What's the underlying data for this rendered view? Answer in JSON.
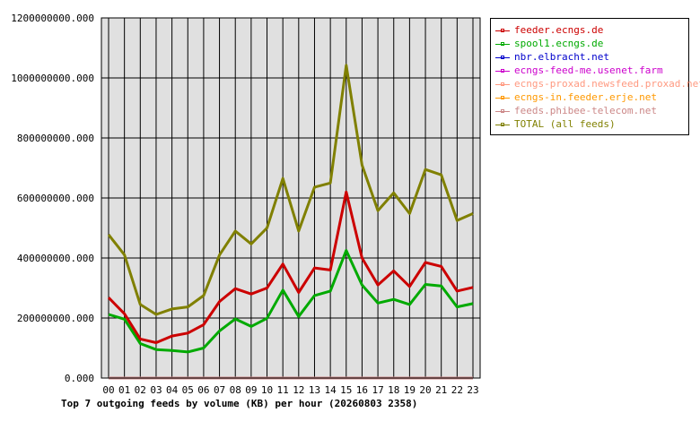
{
  "chart_data": {
    "type": "line",
    "title": "Top 7 outgoing feeds by volume (KB) per hour (20260803 2358)",
    "categories": [
      "00",
      "01",
      "02",
      "03",
      "04",
      "05",
      "06",
      "07",
      "08",
      "09",
      "10",
      "11",
      "12",
      "13",
      "14",
      "15",
      "16",
      "17",
      "18",
      "19",
      "20",
      "21",
      "22",
      "23"
    ],
    "y_ticks": [
      "0.000",
      "200000000.000",
      "400000000.000",
      "600000000.000",
      "800000000.000",
      "1000000000.000",
      "1200000000.000"
    ],
    "ylim": [
      0,
      1200000000
    ],
    "grid": true,
    "legend_position": "right",
    "series": [
      {
        "name": "feeder.ecngs.de",
        "color": "#cc0000",
        "values": [
          268000000,
          214000000,
          130000000,
          118000000,
          140000000,
          150000000,
          178000000,
          255000000,
          298000000,
          280000000,
          300000000,
          380000000,
          285000000,
          367000000,
          360000000,
          620000000,
          400000000,
          310000000,
          357000000,
          305000000,
          385000000,
          372000000,
          290000000,
          302000000
        ]
      },
      {
        "name": "spool1.ecngs.de",
        "color": "#00aa00",
        "values": [
          212000000,
          196000000,
          115000000,
          95000000,
          92000000,
          87000000,
          100000000,
          157000000,
          197000000,
          172000000,
          199000000,
          293000000,
          205000000,
          275000000,
          290000000,
          425000000,
          310000000,
          250000000,
          262000000,
          245000000,
          312000000,
          307000000,
          237000000,
          248000000
        ]
      },
      {
        "name": "nbr.elbracht.net",
        "color": "#0000cc",
        "values": [
          0,
          0,
          0,
          0,
          0,
          0,
          0,
          0,
          0,
          0,
          0,
          0,
          0,
          0,
          0,
          0,
          0,
          0,
          0,
          0,
          0,
          0,
          0,
          0
        ]
      },
      {
        "name": "ecngs-feed-me.usenet.farm",
        "color": "#cc00cc",
        "values": [
          0,
          0,
          0,
          0,
          0,
          0,
          0,
          0,
          0,
          0,
          0,
          0,
          0,
          0,
          0,
          0,
          0,
          0,
          0,
          0,
          0,
          0,
          0,
          0
        ]
      },
      {
        "name": "ecngs-proxad.newsfeed.proxad.net",
        "color": "#ff9980",
        "values": [
          0,
          0,
          0,
          0,
          0,
          0,
          0,
          0,
          0,
          0,
          0,
          0,
          0,
          0,
          0,
          0,
          0,
          0,
          0,
          0,
          0,
          0,
          0,
          0
        ]
      },
      {
        "name": "ecngs-in.feeder.erje.net",
        "color": "#ff9900",
        "values": [
          0,
          0,
          0,
          0,
          0,
          0,
          0,
          0,
          0,
          0,
          0,
          0,
          0,
          0,
          0,
          0,
          0,
          0,
          0,
          0,
          0,
          0,
          0,
          0
        ]
      },
      {
        "name": "feeds.phibee-telecom.net",
        "color": "#cc8888",
        "values": [
          0,
          0,
          0,
          0,
          0,
          0,
          0,
          0,
          0,
          0,
          0,
          0,
          0,
          0,
          0,
          0,
          0,
          0,
          0,
          0,
          0,
          0,
          0,
          0
        ]
      },
      {
        "name": "TOTAL (all feeds)",
        "color": "#808000",
        "values": [
          478000000,
          410000000,
          245000000,
          212000000,
          230000000,
          237000000,
          275000000,
          410000000,
          490000000,
          447000000,
          500000000,
          665000000,
          490000000,
          636000000,
          650000000,
          1042000000,
          710000000,
          558000000,
          617000000,
          548000000,
          695000000,
          677000000,
          525000000,
          548000000
        ]
      }
    ]
  }
}
